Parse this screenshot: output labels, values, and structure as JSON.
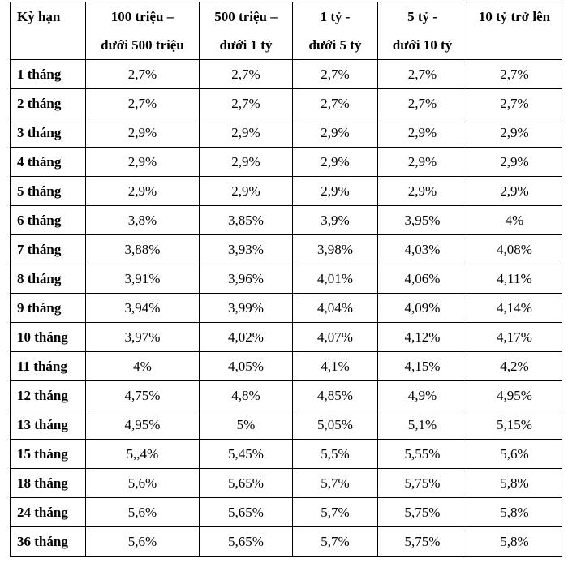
{
  "table": {
    "header": [
      [
        "Kỳ hạn"
      ],
      [
        "100 triệu –",
        "dưới 500 triệu"
      ],
      [
        "500 triệu –",
        "dưới 1 tỷ"
      ],
      [
        "1 tỷ -",
        "dưới 5 tỷ"
      ],
      [
        "5 tỷ -",
        "dưới 10 tỷ"
      ],
      [
        "10 tỷ trở lên"
      ]
    ],
    "rows": [
      [
        "1 tháng",
        "2,7%",
        "2,7%",
        "2,7%",
        "2,7%",
        "2,7%"
      ],
      [
        "2 tháng",
        "2,7%",
        "2,7%",
        "2,7%",
        "2,7%",
        "2,7%"
      ],
      [
        "3 tháng",
        "2,9%",
        "2,9%",
        "2,9%",
        "2,9%",
        "2,9%"
      ],
      [
        "4 tháng",
        "2,9%",
        "2,9%",
        "2,9%",
        "2,9%",
        "2,9%"
      ],
      [
        "5 tháng",
        "2,9%",
        "2,9%",
        "2,9%",
        "2,9%",
        "2,9%"
      ],
      [
        "6 tháng",
        "3,8%",
        "3,85%",
        "3,9%",
        "3,95%",
        "4%"
      ],
      [
        "7 tháng",
        "3,88%",
        "3,93%",
        "3,98%",
        "4,03%",
        "4,08%"
      ],
      [
        "8 tháng",
        "3,91%",
        "3,96%",
        "4,01%",
        "4,06%",
        "4,11%"
      ],
      [
        "9 tháng",
        "3,94%",
        "3,99%",
        "4,04%",
        "4,09%",
        "4,14%"
      ],
      [
        "10 tháng",
        "3,97%",
        "4,02%",
        "4,07%",
        "4,12%",
        "4,17%"
      ],
      [
        "11 tháng",
        "4%",
        "4,05%",
        "4,1%",
        "4,15%",
        "4,2%"
      ],
      [
        "12 tháng",
        "4,75%",
        "4,8%",
        "4,85%",
        "4,9%",
        "4,95%"
      ],
      [
        "13 tháng",
        "4,95%",
        "5%",
        "5,05%",
        "5,1%",
        "5,15%"
      ],
      [
        "15 tháng",
        "5,,4%",
        "5,45%",
        "5,5%",
        "5,55%",
        "5,6%"
      ],
      [
        "18 tháng",
        "5,6%",
        "5,65%",
        "5,7%",
        "5,75%",
        "5,8%"
      ],
      [
        "24 tháng",
        "5,6%",
        "5,65%",
        "5,7%",
        "5,75%",
        "5,8%"
      ],
      [
        "36 tháng",
        "5,6%",
        "5,65%",
        "5,7%",
        "5,75%",
        "5,8%"
      ]
    ]
  }
}
